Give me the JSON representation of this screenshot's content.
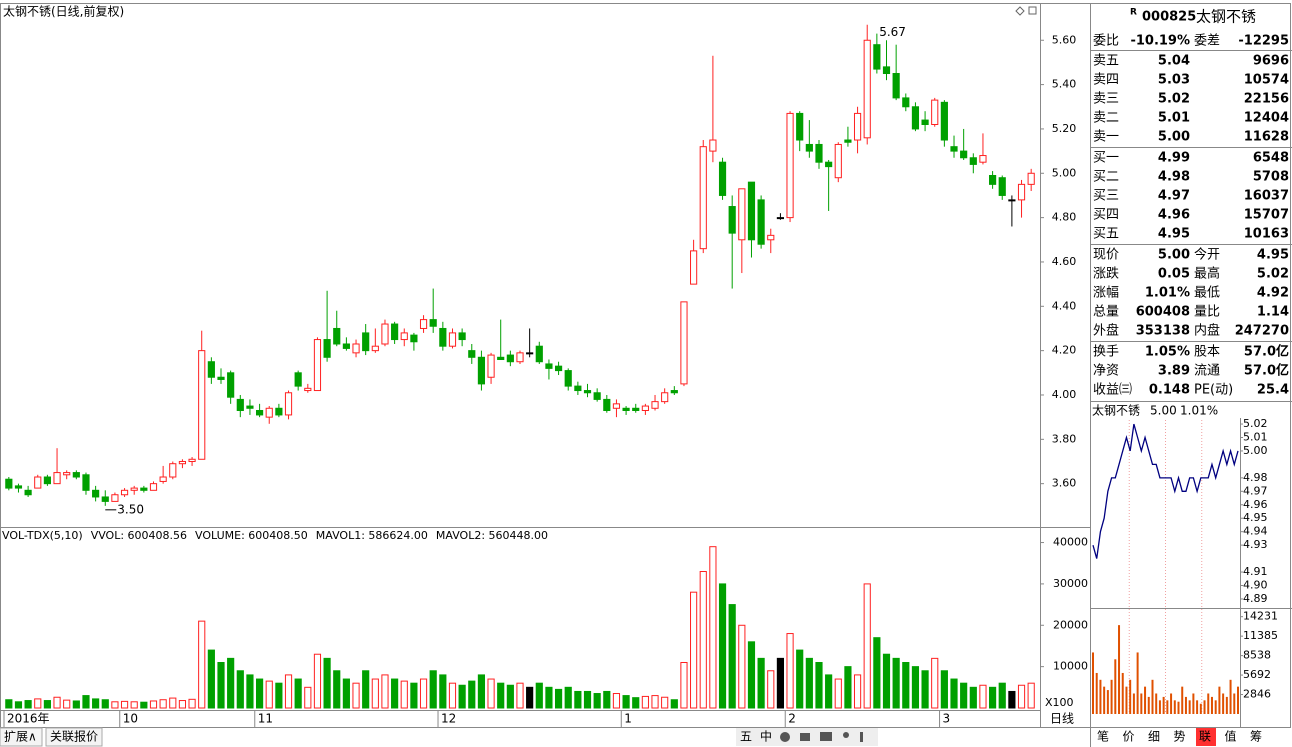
{
  "chart_data": {
    "type": "candlestick",
    "title": "太钢不锈(日线,前复权)",
    "categories": [
      "2016年",
      null,
      null,
      null,
      null,
      null,
      null,
      null,
      null,
      null,
      null,
      null,
      "10",
      null,
      null,
      null,
      null,
      null,
      null,
      null,
      null,
      null,
      null,
      null,
      null,
      null,
      "11",
      null,
      null,
      null,
      null,
      null,
      null,
      null,
      null,
      null,
      null,
      null,
      null,
      null,
      null,
      null,
      null,
      null,
      null,
      "12",
      null,
      null,
      null,
      null,
      null,
      null,
      null,
      null,
      null,
      null,
      null,
      null,
      null,
      null,
      null,
      null,
      null,
      null,
      "1",
      null,
      null,
      null,
      null,
      null,
      null,
      null,
      null,
      null,
      null,
      null,
      null,
      null,
      null,
      null,
      null,
      "2",
      null,
      null,
      null,
      null,
      null,
      null,
      null,
      null,
      null,
      null,
      null,
      null,
      null,
      null,
      null,
      "3",
      null,
      null,
      null,
      null,
      null,
      null,
      null,
      null,
      null
    ],
    "open": [
      3.62,
      3.59,
      3.57,
      3.58,
      3.63,
      3.6,
      3.64,
      3.65,
      3.64,
      3.57,
      3.54,
      3.52,
      3.55,
      3.57,
      3.58,
      3.57,
      3.61,
      3.63,
      3.69,
      3.7,
      3.71,
      4.15,
      4.08,
      4.1,
      3.98,
      3.95,
      3.93,
      3.9,
      3.94,
      3.91,
      4.1,
      4.02,
      4.02,
      4.25,
      4.3,
      4.23,
      4.19,
      4.28,
      4.2,
      4.23,
      4.32,
      4.25,
      4.27,
      4.3,
      4.34,
      4.3,
      4.22,
      4.28,
      4.2,
      4.17,
      4.08,
      4.17,
      4.18,
      4.15,
      4.19,
      4.22,
      4.14,
      4.13,
      4.11,
      4.04,
      4.02,
      4.01,
      3.98,
      3.94,
      3.94,
      3.94,
      3.93,
      3.94,
      3.97,
      4.02,
      4.05,
      4.5,
      4.66,
      5.1,
      5.05,
      4.85,
      4.7,
      4.96,
      4.88,
      4.7,
      4.8,
      4.8,
      5.27,
      5.13,
      5.13,
      5.05,
      4.98,
      5.15,
      5.15,
      5.16,
      5.58,
      5.48,
      5.45,
      5.34,
      5.3,
      5.24,
      5.22,
      5.32,
      5.12,
      5.1,
      5.07,
      5.05,
      4.99,
      4.98,
      4.88,
      4.88,
      4.95
    ],
    "high": [
      3.63,
      3.6,
      3.59,
      3.64,
      3.64,
      3.76,
      3.66,
      3.66,
      3.65,
      3.59,
      3.57,
      3.56,
      3.58,
      3.59,
      3.59,
      3.61,
      3.68,
      3.7,
      3.71,
      3.72,
      4.29,
      4.17,
      4.12,
      4.11,
      4.0,
      3.98,
      3.96,
      3.95,
      3.96,
      4.02,
      4.11,
      4.05,
      4.26,
      4.47,
      4.38,
      4.26,
      4.25,
      4.32,
      4.3,
      4.34,
      4.33,
      4.3,
      4.28,
      4.36,
      4.48,
      4.33,
      4.3,
      4.3,
      4.23,
      4.2,
      4.19,
      4.34,
      4.2,
      4.2,
      4.3,
      4.24,
      4.16,
      4.15,
      4.12,
      4.06,
      4.05,
      4.03,
      4.0,
      3.98,
      3.95,
      3.96,
      3.96,
      4.0,
      4.03,
      4.04,
      4.42,
      4.7,
      5.15,
      5.53,
      5.07,
      4.9,
      4.93,
      4.96,
      4.9,
      4.75,
      4.82,
      5.28,
      5.28,
      5.24,
      5.15,
      5.06,
      5.14,
      5.21,
      5.3,
      5.67,
      5.63,
      5.6,
      5.58,
      5.36,
      5.32,
      5.28,
      5.34,
      5.33,
      5.17,
      5.2,
      5.09,
      5.18,
      5.01,
      4.99,
      4.9,
      4.97,
      5.02
    ],
    "low": [
      3.57,
      3.56,
      3.54,
      3.58,
      3.59,
      3.6,
      3.62,
      3.62,
      3.55,
      3.52,
      3.5,
      3.52,
      3.54,
      3.55,
      3.56,
      3.57,
      3.6,
      3.62,
      3.67,
      3.68,
      3.71,
      4.05,
      4.05,
      3.96,
      3.9,
      3.91,
      3.9,
      3.87,
      3.9,
      3.89,
      4.02,
      4.01,
      4.02,
      4.15,
      4.22,
      4.2,
      4.17,
      4.18,
      4.19,
      4.22,
      4.23,
      4.22,
      4.2,
      4.28,
      4.28,
      4.2,
      4.21,
      4.22,
      4.14,
      4.02,
      4.05,
      4.16,
      4.13,
      4.14,
      4.17,
      4.14,
      4.07,
      4.09,
      4.02,
      4.0,
      3.99,
      3.97,
      3.92,
      3.9,
      3.91,
      3.92,
      3.91,
      3.93,
      3.96,
      4.0,
      4.04,
      4.5,
      4.64,
      5.05,
      4.88,
      4.48,
      4.55,
      4.62,
      4.66,
      4.64,
      4.79,
      4.78,
      5.1,
      5.07,
      5.02,
      4.83,
      4.96,
      5.12,
      5.09,
      5.13,
      5.45,
      5.42,
      5.33,
      5.28,
      5.19,
      5.19,
      5.21,
      5.12,
      5.07,
      5.06,
      5.0,
      5.04,
      4.93,
      4.88,
      4.76,
      4.8,
      4.92
    ],
    "close": [
      3.58,
      3.58,
      3.55,
      3.63,
      3.6,
      3.65,
      3.65,
      3.63,
      3.57,
      3.54,
      3.52,
      3.55,
      3.57,
      3.58,
      3.57,
      3.6,
      3.63,
      3.69,
      3.7,
      3.71,
      4.2,
      4.08,
      4.07,
      3.99,
      3.93,
      3.94,
      3.91,
      3.94,
      3.91,
      4.01,
      4.04,
      4.03,
      4.25,
      4.17,
      4.23,
      4.21,
      4.23,
      4.2,
      4.22,
      4.32,
      4.25,
      4.28,
      4.24,
      4.34,
      4.31,
      4.22,
      4.28,
      4.25,
      4.17,
      4.05,
      4.18,
      4.16,
      4.15,
      4.19,
      4.19,
      4.15,
      4.12,
      4.11,
      4.04,
      4.02,
      4.01,
      3.98,
      3.93,
      3.96,
      3.93,
      3.93,
      3.95,
      3.97,
      4.01,
      4.01,
      4.42,
      4.65,
      5.12,
      5.15,
      4.9,
      4.73,
      4.93,
      4.7,
      4.68,
      4.72,
      4.8,
      5.27,
      5.15,
      5.1,
      5.05,
      5.03,
      5.13,
      5.14,
      5.27,
      5.6,
      5.47,
      5.45,
      5.34,
      5.3,
      5.2,
      5.22,
      5.33,
      5.15,
      5.1,
      5.07,
      5.04,
      5.08,
      4.95,
      4.9,
      4.88,
      4.95,
      5.0
    ],
    "volume": [
      2000,
      1500,
      1800,
      2200,
      1800,
      2600,
      1900,
      1700,
      3000,
      2200,
      2000,
      1500,
      1600,
      1500,
      1400,
      1700,
      2000,
      2400,
      1800,
      2100,
      21000,
      14000,
      11000,
      12000,
      9000,
      8000,
      7000,
      6500,
      6000,
      8000,
      7000,
      5000,
      13000,
      12000,
      9000,
      7000,
      6000,
      9000,
      7000,
      8000,
      7000,
      6500,
      6000,
      7000,
      9000,
      8000,
      6000,
      5500,
      6500,
      8000,
      7000,
      6000,
      5500,
      6000,
      5000,
      6000,
      5000,
      4500,
      5000,
      4000,
      4000,
      3500,
      4000,
      3500,
      3000,
      2500,
      2800,
      3000,
      2600,
      2000,
      11000,
      28000,
      33000,
      39000,
      30000,
      25000,
      20000,
      16000,
      12000,
      9000,
      12000,
      18000,
      14000,
      12000,
      11000,
      8000,
      7000,
      10000,
      8000,
      30000,
      17000,
      13000,
      12000,
      11000,
      10000,
      9000,
      12000,
      9000,
      7000,
      6000,
      5000,
      5500,
      5000,
      6000,
      4000,
      5500,
      6000
    ],
    "up_color": "#ff2020",
    "down_color": "#00a000",
    "ylim": [
      3.4,
      5.75
    ],
    "yticks": [
      {
        "value": 5.6,
        "label": "5.60"
      },
      {
        "value": 5.4,
        "label": "5.40"
      },
      {
        "value": 5.2,
        "label": "5.20"
      },
      {
        "value": 5.0,
        "label": "5.00"
      },
      {
        "value": 4.8,
        "label": "4.80"
      },
      {
        "value": 4.6,
        "label": "4.60"
      },
      {
        "value": 4.4,
        "label": "4.40"
      },
      {
        "value": 4.2,
        "label": "4.20"
      },
      {
        "value": 4.0,
        "label": "4.00"
      },
      {
        "value": 3.8,
        "label": "3.80"
      },
      {
        "value": 3.6,
        "label": "3.60"
      }
    ],
    "annotations": [
      "5.67",
      "3.50"
    ],
    "volume_ylim": [
      0,
      44000
    ],
    "volume_yticks": [
      40000,
      30000,
      20000,
      10000
    ],
    "volume_header": [
      "VOL-TDX(5,10)",
      "VVOL: 600408.56",
      "VOLUME: 600408.50",
      "MAVOL1: 586624.00",
      "MAVOL2: 560448.00"
    ],
    "volume_unit": "X100",
    "period": "日线"
  },
  "quote": {
    "badge": "R",
    "code": "000825",
    "name": "太钢不锈",
    "ratio": [
      "委比",
      "-10.19%",
      "委差",
      "-12295"
    ],
    "asks": [
      [
        "卖五",
        "5.04",
        "9696"
      ],
      [
        "卖四",
        "5.03",
        "10574"
      ],
      [
        "卖三",
        "5.02",
        "22156"
      ],
      [
        "卖二",
        "5.01",
        "12404"
      ],
      [
        "卖一",
        "5.00",
        "11628"
      ]
    ],
    "bids": [
      [
        "买一",
        "4.99",
        "6548"
      ],
      [
        "买二",
        "4.98",
        "5708"
      ],
      [
        "买三",
        "4.97",
        "16037"
      ],
      [
        "买四",
        "4.96",
        "15707"
      ],
      [
        "买五",
        "4.95",
        "10163"
      ]
    ],
    "stats": [
      [
        "现价",
        "5.00",
        "今开",
        "4.95"
      ],
      [
        "涨跌",
        "0.05",
        "最高",
        "5.02"
      ],
      [
        "涨幅",
        "1.01%",
        "最低",
        "4.92"
      ],
      [
        "总量",
        "600408",
        "量比",
        "1.14"
      ],
      [
        "外盘",
        "353138",
        "内盘",
        "247270"
      ]
    ],
    "finance": [
      [
        "换手",
        "1.05%",
        "股本",
        "57.0亿"
      ],
      [
        "净资",
        "3.89",
        "流通",
        "57.0亿"
      ],
      [
        "收益㈢",
        "0.148",
        "PE(动)",
        "25.4"
      ]
    ]
  },
  "intraday": {
    "title": [
      "太钢不锈",
      "5.00",
      "1.01%"
    ],
    "ylim": [
      4.887,
      5.023
    ],
    "yticks": [
      {
        "value": 5.02,
        "label": "5.02"
      },
      {
        "value": 5.01,
        "label": "5.01"
      },
      {
        "value": 5.0,
        "label": "5.00"
      },
      {
        "value": 4.98,
        "label": "4.98"
      },
      {
        "value": 4.97,
        "label": "4.97"
      },
      {
        "value": 4.96,
        "label": "4.96"
      },
      {
        "value": 4.95,
        "label": "4.95"
      },
      {
        "value": 4.94,
        "label": "4.94"
      },
      {
        "value": 4.93,
        "label": "4.93"
      },
      {
        "value": 4.91,
        "label": "4.91"
      },
      {
        "value": 4.9,
        "label": "4.90"
      },
      {
        "value": 4.89,
        "label": "4.89"
      }
    ],
    "values": [
      4.93,
      4.92,
      4.94,
      4.95,
      4.97,
      4.98,
      4.98,
      4.99,
      5.0,
      5.01,
      5.0,
      5.02,
      5.01,
      5.0,
      5.01,
      5.0,
      4.99,
      4.99,
      4.98,
      4.98,
      4.98,
      4.98,
      4.97,
      4.98,
      4.97,
      4.97,
      4.98,
      4.98,
      4.97,
      4.98,
      4.98,
      4.98,
      4.99,
      4.98,
      4.99,
      5.0,
      4.99,
      5.0,
      4.99,
      5.0
    ],
    "volume": [
      9000,
      6000,
      5000,
      4000,
      3500,
      5000,
      8000,
      13000,
      6000,
      4000,
      5000,
      3000,
      9000,
      3000,
      4000,
      2500,
      5000,
      3000,
      2000,
      2500,
      2000,
      3000,
      2000,
      1800,
      4000,
      2500,
      2000,
      3000,
      2000,
      1500,
      2000,
      3000,
      2500,
      2000,
      4000,
      3000,
      2500,
      5000,
      3000,
      4000
    ],
    "volume_ylim": [
      0,
      15500
    ],
    "volume_yticks": [
      14231,
      11385,
      8538,
      5692,
      2846
    ]
  },
  "bottom": {
    "tabs": [
      "扩展∧",
      "关联报价"
    ],
    "toolbar": [
      "五",
      "中"
    ],
    "buttons": [
      "笔",
      "价",
      "细",
      "势",
      "联",
      "值",
      "筹"
    ]
  }
}
